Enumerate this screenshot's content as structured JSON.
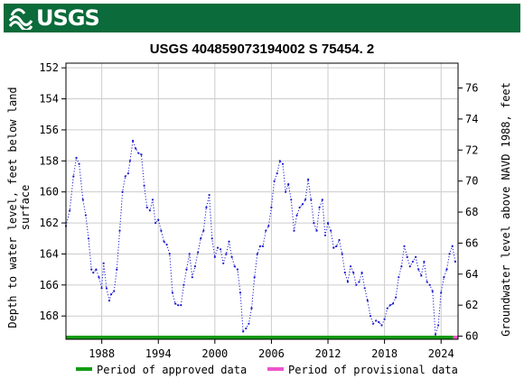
{
  "header": {
    "logo_text": "USGS"
  },
  "chart_data": {
    "type": "line",
    "title": "USGS 404859073194002 S 75454. 2",
    "ylabel_left": "Depth to water level, feet below land surface",
    "ylabel_left_lines": [
      "Depth to water level, feet below land",
      "surface"
    ],
    "ylabel_right": "Groundwater level above NAVD 1988, feet",
    "xlim": [
      1984.2,
      2025.8
    ],
    "ylim_left": [
      169.5,
      151.7
    ],
    "ylim_right": [
      59.8,
      77.6
    ],
    "left_axis_inverted": true,
    "x_ticks": [
      1988,
      1994,
      2000,
      2006,
      2012,
      2018,
      2024
    ],
    "y_ticks_left": [
      152,
      154,
      156,
      158,
      160,
      162,
      164,
      166,
      168
    ],
    "y_ticks_right": [
      60,
      62,
      64,
      66,
      68,
      70,
      72,
      74,
      76
    ],
    "grid": true,
    "legend_position": "bottom",
    "legend": [
      {
        "label": "Period of approved data",
        "color": "#119c11"
      },
      {
        "label": "Period of provisional data",
        "color": "#ee55cc"
      }
    ],
    "approved_period": [
      1984.2,
      2025.3
    ],
    "provisional_period": [
      2025.3,
      2025.8
    ],
    "series": [
      {
        "line_color": "#1a1ad0",
        "x": [
          1984.2,
          1984.6,
          1985.0,
          1985.3,
          1985.6,
          1986.0,
          1986.3,
          1986.6,
          1986.9,
          1987.1,
          1987.4,
          1987.7,
          1988.0,
          1988.2,
          1988.5,
          1988.8,
          1989.0,
          1989.3,
          1989.6,
          1989.9,
          1990.2,
          1990.5,
          1990.8,
          1991.0,
          1991.3,
          1991.6,
          1991.9,
          1992.2,
          1992.5,
          1992.8,
          1993.1,
          1993.4,
          1993.7,
          1994.0,
          1994.3,
          1994.6,
          1994.9,
          1995.2,
          1995.5,
          1995.8,
          1996.1,
          1996.4,
          1996.7,
          1997.0,
          1997.3,
          1997.6,
          1997.9,
          1998.2,
          1998.5,
          1998.8,
          1999.1,
          1999.4,
          1999.7,
          2000.0,
          2000.3,
          2000.6,
          2000.9,
          2001.2,
          2001.5,
          2001.8,
          2002.1,
          2002.4,
          2002.7,
          2003.0,
          2003.3,
          2003.6,
          2003.9,
          2004.2,
          2004.5,
          2004.8,
          2005.1,
          2005.4,
          2005.7,
          2006.0,
          2006.3,
          2006.6,
          2006.9,
          2007.2,
          2007.5,
          2007.8,
          2008.1,
          2008.4,
          2008.7,
          2009.0,
          2009.3,
          2009.6,
          2009.9,
          2010.2,
          2010.5,
          2010.8,
          2011.1,
          2011.4,
          2011.7,
          2012.0,
          2012.3,
          2012.6,
          2012.9,
          2013.2,
          2013.5,
          2013.8,
          2014.1,
          2014.4,
          2014.7,
          2015.0,
          2015.3,
          2015.6,
          2015.9,
          2016.2,
          2016.5,
          2016.8,
          2017.1,
          2017.4,
          2017.7,
          2018.0,
          2018.3,
          2018.6,
          2018.9,
          2019.2,
          2019.5,
          2019.8,
          2020.1,
          2020.4,
          2020.7,
          2021.0,
          2021.3,
          2021.6,
          2021.9,
          2022.2,
          2022.5,
          2022.8,
          2023.1,
          2023.4,
          2023.7,
          2024.0,
          2024.3,
          2024.6,
          2024.9,
          2025.2,
          2025.5
        ],
        "y": [
          162.2,
          161.2,
          159.0,
          157.8,
          158.2,
          160.5,
          161.5,
          163.0,
          165.0,
          165.2,
          165.0,
          165.5,
          166.2,
          164.6,
          166.2,
          167.0,
          166.6,
          166.4,
          165.0,
          162.5,
          160.0,
          159.0,
          158.8,
          158.0,
          156.7,
          157.2,
          157.5,
          157.6,
          159.6,
          161.0,
          161.2,
          160.5,
          162.0,
          161.8,
          162.5,
          163.2,
          163.4,
          164.0,
          166.5,
          167.2,
          167.3,
          167.3,
          166.0,
          165.0,
          164.0,
          165.5,
          164.8,
          163.9,
          163.0,
          162.5,
          161.0,
          160.2,
          163.0,
          164.2,
          163.6,
          163.7,
          164.6,
          164.0,
          163.2,
          164.2,
          164.8,
          165.0,
          166.5,
          169.0,
          168.8,
          168.5,
          167.5,
          165.5,
          164.0,
          163.5,
          163.5,
          162.5,
          162.2,
          161.0,
          159.3,
          158.8,
          158.0,
          158.2,
          160.0,
          159.5,
          160.5,
          162.5,
          161.5,
          161.0,
          160.8,
          160.5,
          159.2,
          160.5,
          162.0,
          162.5,
          161.0,
          160.5,
          162.8,
          162.0,
          162.5,
          163.6,
          163.5,
          163.1,
          164.0,
          165.2,
          165.8,
          164.8,
          165.2,
          166.0,
          165.8,
          165.2,
          166.2,
          167.0,
          168.0,
          168.5,
          168.3,
          168.4,
          168.6,
          168.2,
          167.5,
          167.3,
          167.2,
          166.8,
          165.5,
          164.8,
          163.5,
          164.2,
          164.8,
          164.5,
          164.2,
          165.0,
          165.4,
          164.5,
          165.8,
          166.0,
          166.4,
          169.2,
          168.6,
          166.5,
          165.5,
          165.0,
          164.0,
          163.5,
          164.5
        ]
      }
    ]
  }
}
